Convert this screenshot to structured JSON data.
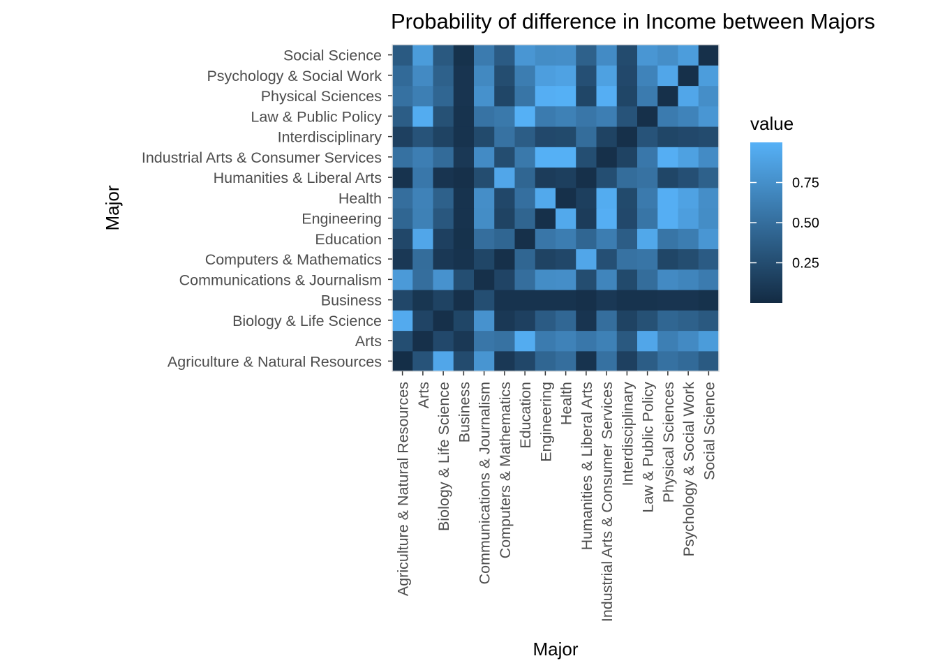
{
  "chart_data": {
    "type": "heatmap",
    "title": "Probability of difference in Income between Majors",
    "xlabel": "Major",
    "ylabel": "Major",
    "categories": [
      "Agriculture & Natural Resources",
      "Arts",
      "Biology & Life Science",
      "Business",
      "Communications & Journalism",
      "Computers & Mathematics",
      "Education",
      "Engineering",
      "Health",
      "Humanities & Liberal Arts",
      "Industrial Arts & Consumer Services",
      "Interdisciplinary",
      "Law & Public Policy",
      "Physical Sciences",
      "Psychology & Social Work",
      "Social Science"
    ],
    "values": [
      [
        0.02,
        0.3,
        0.92,
        0.24,
        0.79,
        0.1,
        0.21,
        0.44,
        0.5,
        0.06,
        0.52,
        0.16,
        0.37,
        0.52,
        0.47,
        0.35
      ],
      [
        0.26,
        0.04,
        0.22,
        0.1,
        0.56,
        0.53,
        0.96,
        0.6,
        0.65,
        0.57,
        0.64,
        0.34,
        0.92,
        0.63,
        0.71,
        0.84
      ],
      [
        0.95,
        0.19,
        0.04,
        0.2,
        0.77,
        0.1,
        0.16,
        0.36,
        0.45,
        0.07,
        0.5,
        0.18,
        0.28,
        0.44,
        0.4,
        0.34
      ],
      [
        0.21,
        0.08,
        0.18,
        0.04,
        0.26,
        0.06,
        0.06,
        0.06,
        0.06,
        0.04,
        0.1,
        0.06,
        0.06,
        0.07,
        0.07,
        0.05
      ],
      [
        0.83,
        0.5,
        0.77,
        0.26,
        0.04,
        0.19,
        0.5,
        0.73,
        0.74,
        0.25,
        0.67,
        0.23,
        0.49,
        0.71,
        0.67,
        0.6
      ],
      [
        0.1,
        0.49,
        0.1,
        0.06,
        0.2,
        0.04,
        0.44,
        0.18,
        0.21,
        0.92,
        0.27,
        0.53,
        0.55,
        0.2,
        0.25,
        0.36
      ],
      [
        0.21,
        0.92,
        0.16,
        0.05,
        0.5,
        0.44,
        0.04,
        0.56,
        0.61,
        0.44,
        0.61,
        0.37,
        0.93,
        0.55,
        0.61,
        0.8
      ],
      [
        0.44,
        0.64,
        0.33,
        0.06,
        0.73,
        0.18,
        0.43,
        0.04,
        0.94,
        0.13,
        0.98,
        0.22,
        0.55,
        0.98,
        0.86,
        0.73
      ],
      [
        0.5,
        0.65,
        0.4,
        0.06,
        0.74,
        0.21,
        0.51,
        0.94,
        0.04,
        0.15,
        0.96,
        0.23,
        0.59,
        0.98,
        0.89,
        0.74
      ],
      [
        0.06,
        0.57,
        0.07,
        0.04,
        0.25,
        0.92,
        0.44,
        0.13,
        0.15,
        0.04,
        0.26,
        0.49,
        0.53,
        0.2,
        0.27,
        0.4
      ],
      [
        0.52,
        0.62,
        0.48,
        0.1,
        0.72,
        0.25,
        0.58,
        0.99,
        0.99,
        0.26,
        0.04,
        0.18,
        0.57,
        0.98,
        0.88,
        0.72
      ],
      [
        0.16,
        0.3,
        0.18,
        0.06,
        0.23,
        0.53,
        0.37,
        0.22,
        0.23,
        0.49,
        0.18,
        0.04,
        0.3,
        0.2,
        0.22,
        0.24
      ],
      [
        0.37,
        0.96,
        0.28,
        0.06,
        0.54,
        0.58,
        0.99,
        0.6,
        0.64,
        0.56,
        0.62,
        0.3,
        0.04,
        0.6,
        0.66,
        0.8
      ],
      [
        0.52,
        0.63,
        0.44,
        0.07,
        0.76,
        0.2,
        0.55,
        0.98,
        0.99,
        0.2,
        0.98,
        0.2,
        0.6,
        0.04,
        0.92,
        0.74
      ],
      [
        0.47,
        0.71,
        0.4,
        0.07,
        0.7,
        0.25,
        0.61,
        0.86,
        0.89,
        0.27,
        0.88,
        0.22,
        0.66,
        0.92,
        0.04,
        0.85
      ],
      [
        0.35,
        0.84,
        0.34,
        0.05,
        0.6,
        0.36,
        0.8,
        0.73,
        0.74,
        0.4,
        0.72,
        0.24,
        0.8,
        0.74,
        0.85,
        0.04
      ]
    ],
    "legend": {
      "title": "value",
      "placement": "right",
      "breaks": [
        0.25,
        0.5,
        0.75
      ],
      "break_labels": [
        "0.25",
        "0.50",
        "0.75"
      ],
      "range": [
        0.0,
        1.0
      ]
    },
    "colors": {
      "low": "#132b43",
      "high": "#56b1f7",
      "text": "#4d4d4d",
      "title": "#000000",
      "panel_border": "#e6e6e6",
      "background": "#ffffff"
    }
  }
}
